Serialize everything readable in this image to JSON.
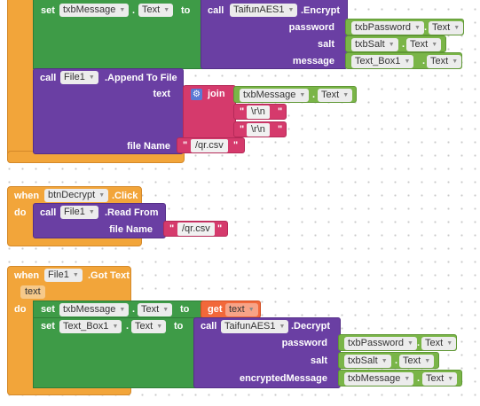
{
  "kw": {
    "set": "set",
    "to": "to",
    "call": "call",
    "when": "when",
    "do": "do",
    "join": "join",
    "get": "get",
    "dot": "."
  },
  "block1": {
    "set_var": "txbMessage",
    "set_prop": "Text",
    "call_comp": "TaifunAES1",
    "call_method": ".Encrypt",
    "args": [
      {
        "label": "password",
        "comp": "txbPassword",
        "prop": "Text"
      },
      {
        "label": "salt",
        "comp": "txbSalt",
        "prop": "Text"
      },
      {
        "label": "message",
        "comp": "Text_Box1",
        "prop": "Text"
      }
    ],
    "append": {
      "comp": "File1",
      "method": ".Append To File",
      "text_label": "text",
      "join_items": [
        {
          "comp": "txbMessage",
          "prop": "Text"
        },
        {
          "str": "\\r\\n"
        },
        {
          "str": "\\r\\n"
        }
      ],
      "file_label": "file Name",
      "file_name": "/qr.csv"
    }
  },
  "block2": {
    "comp": "btnDecrypt",
    "event": ".Click",
    "call_comp": "File1",
    "call_method": ".Read From",
    "file_label": "file Name",
    "file_name": "/qr.csv"
  },
  "block3": {
    "comp": "File1",
    "event": ".Got Text",
    "param": "text",
    "set1": {
      "comp": "txbMessage",
      "prop": "Text",
      "get_var": "text"
    },
    "set2": {
      "comp": "Text_Box1",
      "prop": "Text",
      "call_comp": "TaifunAES1",
      "call_method": ".Decrypt",
      "args": [
        {
          "label": "password",
          "comp": "txbPassword",
          "prop": "Text"
        },
        {
          "label": "salt",
          "comp": "txbSalt",
          "prop": "Text"
        },
        {
          "label": "encryptedMessage",
          "comp": "txbMessage",
          "prop": "Text"
        }
      ]
    }
  },
  "colors": {
    "event": "#f2a53a",
    "setter": "#3e9b47",
    "call": "#6a3fa3",
    "text": "#d53a6c",
    "getter": "#f2683a",
    "component": "#7ab548"
  },
  "icons": {
    "dropdown": "chevron-down-icon",
    "mutator": "gear-icon"
  }
}
